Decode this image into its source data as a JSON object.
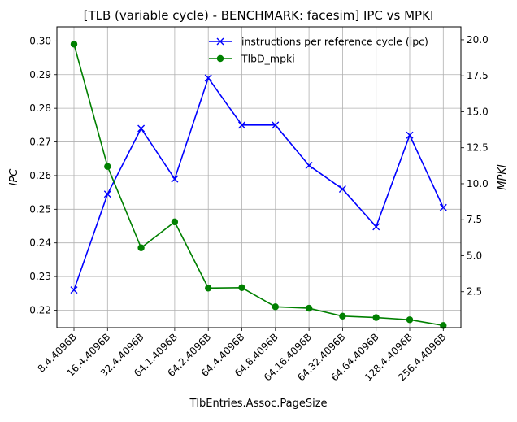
{
  "chart_data": {
    "type": "line",
    "title": "[TLB (variable cycle) - BENCHMARK: facesim]  IPC vs MPKI",
    "xlabel": "TlbEntries.Assoc.PageSize",
    "ylabel_left": "IPC",
    "ylabel_right": "MPKI",
    "categories": [
      "8.4.4096B",
      "16.4.4096B",
      "32.4.4096B",
      "64.1.4096B",
      "64.2.4096B",
      "64.4.4096B",
      "64.8.4096B",
      "64.16.4096B",
      "64.32.4096B",
      "64.64.4096B",
      "128.4.4096B",
      "256.4.4096B"
    ],
    "ylim_left": [
      0.2148,
      0.3042
    ],
    "ylim_right": [
      0.0,
      20.9
    ],
    "yticks_left": [
      "0.22",
      "0.23",
      "0.24",
      "0.25",
      "0.26",
      "0.27",
      "0.28",
      "0.29",
      "0.30"
    ],
    "yticks_right": [
      "2.5",
      "5.0",
      "7.5",
      "10.0",
      "12.5",
      "15.0",
      "17.5",
      "20.0"
    ],
    "grid": true,
    "legend_position": "top-right",
    "series": [
      {
        "name": "instructions per reference cycle (ipc)",
        "axis": "left",
        "color": "#0000ff",
        "marker": "x",
        "values": [
          0.226,
          0.2545,
          0.274,
          0.259,
          0.289,
          0.275,
          0.275,
          0.263,
          0.256,
          0.2448,
          0.272,
          0.2505
        ]
      },
      {
        "name": "TlbD_mpki",
        "axis": "right",
        "color": "#008000",
        "marker": "o",
        "values": [
          19.7,
          11.2,
          5.55,
          7.35,
          2.75,
          2.78,
          1.45,
          1.35,
          0.8,
          0.7,
          0.55,
          0.15
        ]
      }
    ]
  }
}
